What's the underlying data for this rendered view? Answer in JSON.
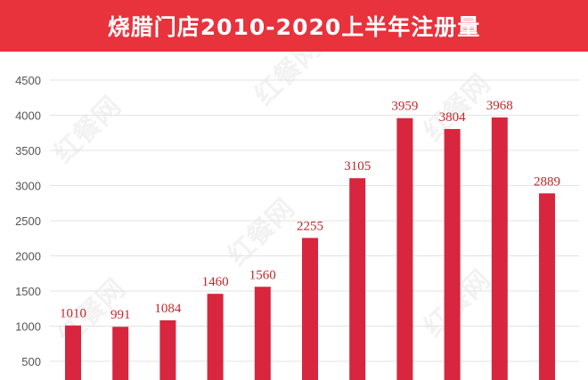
{
  "header": {
    "title": "烧腊门店2010-2020上半年注册量"
  },
  "watermark": {
    "text": "红餐网"
  },
  "colors": {
    "accent": "#e8323c",
    "bar": "#d7263d",
    "label": "#c0272d",
    "grid": "#e3e3e3"
  },
  "chart_data": {
    "type": "bar",
    "title": "烧腊门店2010-2020上半年注册量",
    "xlabel": "",
    "ylabel": "",
    "categories": [
      "",
      "",
      "",
      "",
      "",
      "",
      "",
      "",
      "",
      "",
      ""
    ],
    "values": [
      1010,
      991,
      1084,
      1460,
      1560,
      2255,
      3105,
      3959,
      3804,
      3968,
      2889
    ],
    "labels": [
      "1010",
      "991",
      "1084",
      "1460",
      "1560",
      "2255",
      "3105",
      "3959",
      "3804",
      "3968",
      "2889"
    ],
    "yticks": [
      "500",
      "1000",
      "1500",
      "2000",
      "2500",
      "3000",
      "3500",
      "4000",
      "4500"
    ],
    "ylim": [
      0,
      4500
    ],
    "grid": true,
    "legend": "none"
  }
}
